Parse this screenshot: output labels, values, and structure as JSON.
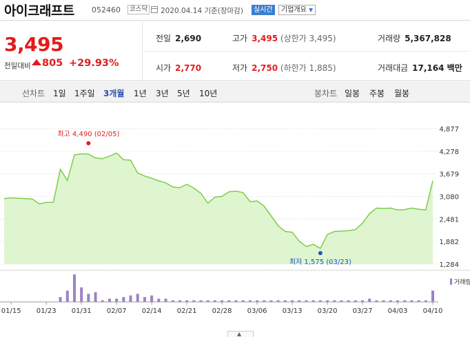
{
  "header": {
    "name": "아이크래프트",
    "code": "052460",
    "market": "코스닥",
    "date": "2020.04.14 기준(장마감)",
    "realtime_button": "실시간",
    "company_info_button": "기업개요"
  },
  "summary": {
    "price": "3,495",
    "change_label": "전일대비",
    "change": "805",
    "change_pct": "+29.93%",
    "prev_close": {
      "label": "전일",
      "value": "2,690"
    },
    "high": {
      "label": "고가",
      "value": "3,495",
      "limit": "(상한가 3,495)"
    },
    "volume": {
      "label": "거래량",
      "value": "5,367,828"
    },
    "open": {
      "label": "시가",
      "value": "2,770"
    },
    "low": {
      "label": "저가",
      "value": "2,750",
      "limit": "(하한가 1,885)"
    },
    "amount": {
      "label": "거래대금",
      "value": "17,164 백만"
    }
  },
  "line_chart_tabs": {
    "label": "선차트",
    "items": [
      "1일",
      "1주일",
      "3개월",
      "1년",
      "3년",
      "5년",
      "10년"
    ],
    "selected": "3개월"
  },
  "candle_chart_tabs": {
    "label": "봉차트",
    "items": [
      "일봉",
      "주봉",
      "월봉"
    ]
  },
  "colors": {
    "up": "#e31b1b",
    "down": "#1a57c7",
    "line": "#7ccd4a",
    "fill": "#dff5cf",
    "volume": "#9b82c7"
  },
  "chart_data": {
    "type": "area",
    "y_ticks": [
      "4,877",
      "4,278",
      "3,679",
      "3,080",
      "2,481",
      "1,882",
      "1,284"
    ],
    "ylim": [
      1284,
      4877
    ],
    "x_ticks": [
      {
        "label": "01/15",
        "idx": 1
      },
      {
        "label": "01/23",
        "idx": 6
      },
      {
        "label": "01/31",
        "idx": 11
      },
      {
        "label": "02/07",
        "idx": 16
      },
      {
        "label": "02/14",
        "idx": 21
      },
      {
        "label": "02/21",
        "idx": 26
      },
      {
        "label": "02/28",
        "idx": 31
      },
      {
        "label": "03/06",
        "idx": 36
      },
      {
        "label": "03/13",
        "idx": 41
      },
      {
        "label": "03/20",
        "idx": 46
      },
      {
        "label": "03/27",
        "idx": 51
      },
      {
        "label": "04/03",
        "idx": 56
      },
      {
        "label": "04/10",
        "idx": 61
      }
    ],
    "close": [
      3020,
      3040,
      3030,
      3020,
      3010,
      2880,
      2920,
      2920,
      3800,
      3500,
      4180,
      4210,
      4200,
      4100,
      4080,
      4150,
      4230,
      4050,
      4040,
      3700,
      3620,
      3560,
      3490,
      3440,
      3330,
      3310,
      3400,
      3300,
      3160,
      2900,
      3060,
      3080,
      3200,
      3220,
      3180,
      2940,
      2960,
      2820,
      2560,
      2300,
      2150,
      2130,
      1890,
      1750,
      1810,
      1700,
      2070,
      2150,
      2160,
      2170,
      2200,
      2370,
      2620,
      2770,
      2760,
      2770,
      2720,
      2730,
      2770,
      2740,
      2720,
      3495
    ],
    "volume": [
      0,
      0,
      0,
      0,
      0,
      0,
      0,
      0,
      3,
      7,
      17,
      9,
      5,
      6,
      1,
      2,
      2,
      3,
      4,
      5,
      3,
      4,
      2,
      2,
      1,
      1,
      1,
      1,
      1,
      1,
      1,
      1,
      1,
      1,
      1,
      1,
      1,
      1,
      1,
      1,
      1,
      1,
      1,
      1,
      1,
      1,
      1,
      1,
      1,
      1,
      1,
      1,
      2,
      1,
      1,
      1,
      1,
      1,
      1,
      1,
      1,
      7
    ],
    "high_annotation": {
      "label": "최고 4,490 (02/05)",
      "value": 4490,
      "idx": 12
    },
    "low_annotation": {
      "label": "최저 1,575 (03/23)",
      "value": 1575,
      "idx": 45
    },
    "volume_legend": "거래량"
  }
}
